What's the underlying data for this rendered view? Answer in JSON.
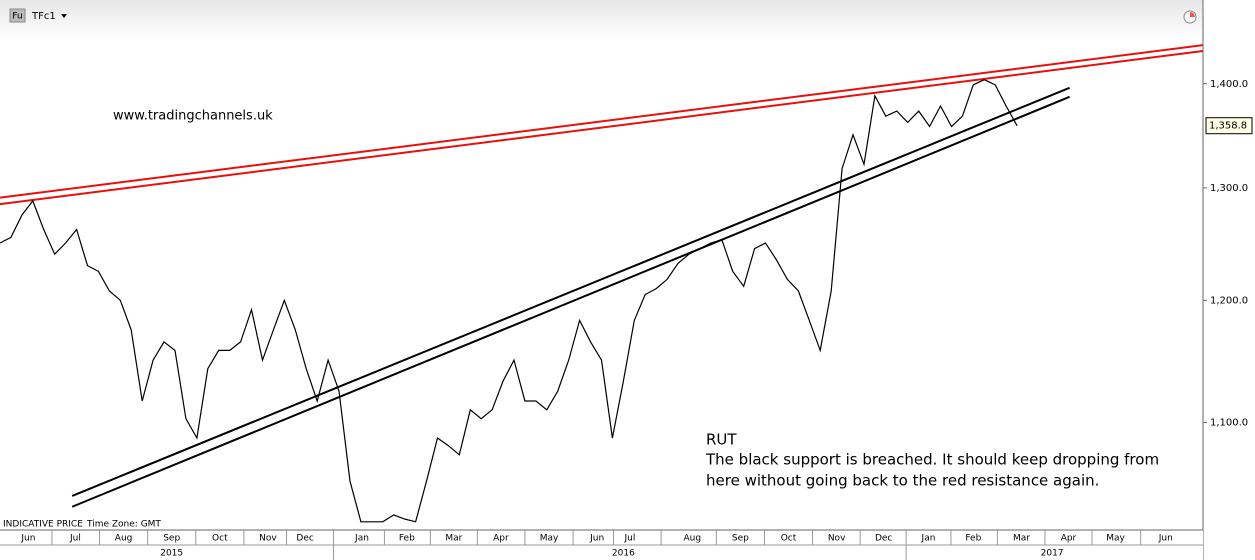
{
  "chart_data": {
    "type": "line",
    "instrument_tag": "Fu",
    "instrument": "TFc1",
    "footer_note": "INDICATIVE PRICE",
    "time_zone": "Time Zone: GMT",
    "annotations": [
      "www.tradingchannels.uk",
      "RUT",
      "The black support is breached. It should keep dropping from",
      "here without going back to the red resistance again."
    ],
    "x": [
      0,
      1,
      2,
      3,
      4,
      5,
      6,
      7,
      8,
      9,
      10,
      11,
      12,
      13,
      14,
      15,
      16,
      17,
      18,
      19,
      20,
      21,
      22,
      23,
      24,
      25,
      26,
      27,
      28,
      29,
      30,
      31,
      32,
      33,
      34,
      35,
      36,
      37,
      38,
      39,
      40,
      41,
      42,
      43,
      44,
      45,
      46,
      47,
      48,
      49,
      50,
      51,
      52,
      53,
      54,
      55,
      56,
      57,
      58,
      59,
      60,
      61,
      62,
      63,
      64,
      65,
      66,
      67,
      68,
      69,
      70,
      71,
      72,
      73,
      74,
      75,
      76,
      77,
      78,
      79,
      80,
      81,
      82,
      83,
      84,
      85,
      86,
      87,
      88,
      89,
      90,
      91,
      92,
      93
    ],
    "series": [
      {
        "color": "#000000",
        "values": [
          1250,
          1255,
          1275,
          1288,
          1262,
          1240,
          1250,
          1262,
          1230,
          1225,
          1208,
          1200,
          1175,
          1117,
          1150,
          1165,
          1158,
          1103,
          1088,
          1143,
          1158,
          1158,
          1165,
          1192,
          1150,
          1175,
          1200,
          1175,
          1143,
          1117,
          1150,
          1125,
          1055,
          1025,
          1025,
          1025,
          1030,
          1027,
          1025,
          1055,
          1088,
          1082,
          1075,
          1110,
          1103,
          1110,
          1133,
          1150,
          1117,
          1117,
          1110,
          1125,
          1150,
          1183,
          1165,
          1150,
          1088,
          1133,
          1183,
          1205,
          1210,
          1218,
          1232,
          1240,
          1245,
          1250,
          1253,
          1225,
          1212,
          1245,
          1250,
          1235,
          1218,
          1208,
          1183,
          1158,
          1208,
          1318,
          1350,
          1322,
          1388,
          1368,
          1373,
          1362,
          1373,
          1358,
          1378,
          1358,
          1368,
          1399,
          1404,
          1399,
          1378,
          1358.8
        ]
      }
    ],
    "price_marker": {
      "value": 1358.8,
      "label": "1,358.8"
    },
    "trendlines": [
      {
        "color": "#e8100c",
        "x": [
          0,
          110
        ],
        "values": [
          1291,
          1439
        ]
      },
      {
        "color": "#e8100c",
        "x": [
          0,
          110
        ],
        "values": [
          1285,
          1433
        ]
      },
      {
        "color": "#000000",
        "x": [
          6.6,
          97.8
        ],
        "values": [
          1044,
          1396
        ]
      },
      {
        "color": "#000000",
        "x": [
          6.6,
          97.8
        ],
        "values": [
          1036,
          1387
        ]
      }
    ],
    "xlim": [
      0,
      110
    ],
    "xticks": [
      {
        "value": 2.6,
        "label": "Jun"
      },
      {
        "value": 6.9,
        "label": "Jul"
      },
      {
        "value": 11.3,
        "label": "Aug"
      },
      {
        "value": 15.7,
        "label": "Sep"
      },
      {
        "value": 20.1,
        "label": "Oct"
      },
      {
        "value": 24.5,
        "label": "Nov"
      },
      {
        "value": 27.9,
        "label": "Dec"
      },
      {
        "value": 33.1,
        "label": "Jan"
      },
      {
        "value": 37.2,
        "label": "Feb"
      },
      {
        "value": 41.5,
        "label": "Mar"
      },
      {
        "value": 45.8,
        "label": "Apr"
      },
      {
        "value": 50.2,
        "label": "May"
      },
      {
        "value": 54.6,
        "label": "Jun"
      },
      {
        "value": 57.6,
        "label": "Jul"
      },
      {
        "value": 63.3,
        "label": "Aug"
      },
      {
        "value": 67.7,
        "label": "Sep"
      },
      {
        "value": 72.1,
        "label": "Oct"
      },
      {
        "value": 76.5,
        "label": "Nov"
      },
      {
        "value": 80.8,
        "label": "Dec"
      },
      {
        "value": 84.9,
        "label": "Jan"
      },
      {
        "value": 89.0,
        "label": "Feb"
      },
      {
        "value": 93.4,
        "label": "Mar"
      },
      {
        "value": 97.7,
        "label": "Apr"
      },
      {
        "value": 102.0,
        "label": "May"
      },
      {
        "value": 106.6,
        "label": "Jun"
      }
    ],
    "years": [
      {
        "value": 15.7,
        "label": "2015"
      },
      {
        "value": 57,
        "label": "2016"
      },
      {
        "value": 96.2,
        "label": "2017"
      }
    ],
    "ylim": [
      1019,
      1486
    ],
    "log_scale": true,
    "yticks": [
      {
        "value": 1100,
        "label": "1,100.0"
      },
      {
        "value": 1200,
        "label": "1,200.0"
      },
      {
        "value": 1300,
        "label": "1,300.0"
      },
      {
        "value": 1400,
        "label": "1,400.0"
      }
    ]
  }
}
